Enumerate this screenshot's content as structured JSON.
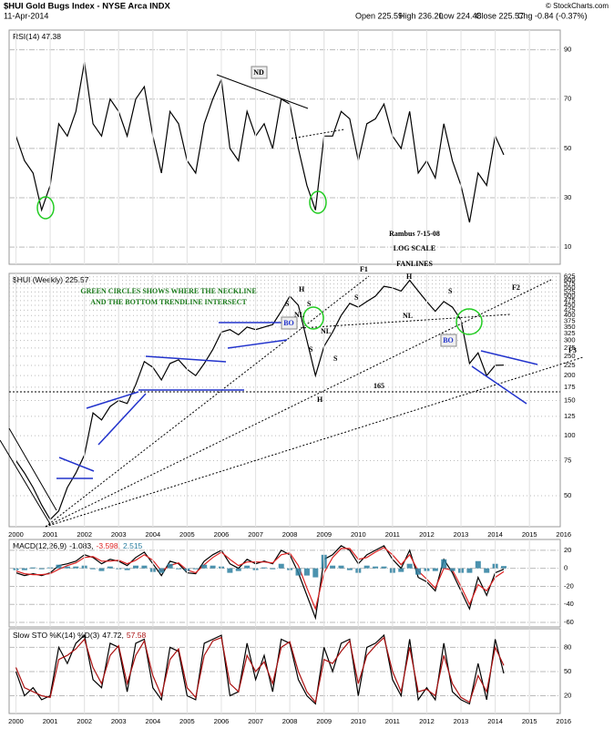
{
  "header": {
    "title": "$HUI Gold Bugs Index - NYSE Arca INDX",
    "date": "11-Apr-2014",
    "stats": [
      "Open 225.59",
      "High 236.20",
      "Low 224.48",
      "Close 225.57",
      "Chg -0.84 (-0.37%)"
    ],
    "copyright": "© StockCharts.com"
  },
  "annotations": [
    "ND",
    "Rambus  7-15-08",
    "LOG SCALE",
    "FANLINES",
    "F1",
    "F2",
    "F3",
    "GREEN CIRCLES SHOWS WHERE THE NECKLINE",
    "AND THE BOTTOM TRENDLINE INTERSECT",
    "H",
    "S",
    "S",
    "NL",
    "BO",
    "S",
    "NL",
    "S",
    "H",
    "S",
    "H",
    "NL",
    "S",
    "BO",
    "165"
  ],
  "chart_data": [
    {
      "type": "line",
      "label": [
        "RSI(14) 47.38"
      ],
      "xlim": [
        1999.8,
        2015.9
      ],
      "ylim": [
        3,
        98
      ],
      "yticks": [
        10,
        30,
        50,
        70,
        90
      ],
      "grid": true,
      "series": [
        {
          "color": "#000000",
          "x": [
            2000,
            2000.25,
            2000.5,
            2000.75,
            2001,
            2001.25,
            2001.5,
            2001.75,
            2002,
            2002.25,
            2002.5,
            2002.75,
            2003,
            2003.25,
            2003.5,
            2003.75,
            2004,
            2004.25,
            2004.5,
            2004.75,
            2005,
            2005.25,
            2005.5,
            2005.75,
            2006,
            2006.25,
            2006.5,
            2006.75,
            2007,
            2007.25,
            2007.5,
            2007.75,
            2008,
            2008.25,
            2008.5,
            2008.75,
            2009,
            2009.25,
            2009.5,
            2009.75,
            2010,
            2010.25,
            2010.5,
            2010.75,
            2011,
            2011.25,
            2011.5,
            2011.75,
            2012,
            2012.25,
            2012.5,
            2012.75,
            2013,
            2013.25,
            2013.5,
            2013.75,
            2014,
            2014.25
          ],
          "values": [
            55,
            45,
            40,
            25,
            35,
            60,
            55,
            65,
            85,
            60,
            55,
            70,
            65,
            55,
            70,
            75,
            55,
            40,
            65,
            60,
            45,
            40,
            60,
            70,
            78,
            50,
            45,
            65,
            55,
            60,
            50,
            70,
            68,
            50,
            35,
            25,
            55,
            55,
            65,
            62,
            45,
            60,
            62,
            68,
            55,
            50,
            65,
            40,
            45,
            38,
            60,
            45,
            35,
            20,
            40,
            35,
            55,
            47.38
          ]
        }
      ]
    },
    {
      "type": "line",
      "label": [
        "$HUI (Weekly) 225.57"
      ],
      "log_scale": true,
      "xlim": [
        1999.8,
        2015.9
      ],
      "ylim": [
        35,
        650
      ],
      "yticks": [
        50,
        75,
        100,
        125,
        150,
        175,
        200,
        225,
        250,
        275,
        300,
        325,
        350,
        375,
        400,
        425,
        450,
        475,
        500,
        525,
        550,
        575,
        600,
        625
      ],
      "xticks": [
        2000,
        2001,
        2002,
        2003,
        2004,
        2005,
        2006,
        2007,
        2008,
        2009,
        2010,
        2011,
        2012,
        2013,
        2014,
        2015,
        2016
      ],
      "grid": true,
      "series": [
        {
          "color": "#000000",
          "x": [
            2000,
            2000.25,
            2000.5,
            2000.75,
            2001,
            2001.25,
            2001.5,
            2001.75,
            2002,
            2002.25,
            2002.5,
            2002.75,
            2003,
            2003.25,
            2003.5,
            2003.75,
            2004,
            2004.25,
            2004.5,
            2004.75,
            2005,
            2005.25,
            2005.5,
            2005.75,
            2006,
            2006.25,
            2006.5,
            2006.75,
            2007,
            2007.25,
            2007.5,
            2007.75,
            2008,
            2008.25,
            2008.5,
            2008.75,
            2009,
            2009.25,
            2009.5,
            2009.75,
            2010,
            2010.25,
            2010.5,
            2010.75,
            2011,
            2011.25,
            2011.5,
            2011.75,
            2012,
            2012.25,
            2012.5,
            2012.75,
            2013,
            2013.25,
            2013.5,
            2013.75,
            2014,
            2014.25
          ],
          "values": [
            75,
            65,
            55,
            45,
            38,
            42,
            55,
            65,
            80,
            130,
            120,
            140,
            150,
            145,
            180,
            235,
            220,
            190,
            230,
            240,
            215,
            200,
            230,
            270,
            330,
            340,
            320,
            350,
            340,
            350,
            360,
            420,
            500,
            450,
            300,
            200,
            280,
            330,
            400,
            460,
            440,
            470,
            500,
            560,
            550,
            530,
            600,
            530,
            470,
            420,
            470,
            440,
            380,
            230,
            260,
            200,
            225,
            225.57
          ]
        }
      ]
    },
    {
      "type": "line",
      "label": [
        "MACD(12,26,9)",
        "-1.083,",
        "-3.598,",
        "2.515"
      ],
      "xlim": [
        1999.8,
        2015.9
      ],
      "ylim": [
        -65,
        32
      ],
      "yticks": [
        -60,
        -40,
        -20,
        0,
        20
      ],
      "grid": true,
      "series": [
        {
          "color": "#000000",
          "x": [
            2000,
            2000.25,
            2000.5,
            2000.75,
            2001,
            2001.25,
            2001.5,
            2001.75,
            2002,
            2002.25,
            2002.5,
            2002.75,
            2003,
            2003.25,
            2003.5,
            2003.75,
            2004,
            2004.25,
            2004.5,
            2004.75,
            2005,
            2005.25,
            2005.5,
            2005.75,
            2006,
            2006.25,
            2006.5,
            2006.75,
            2007,
            2007.25,
            2007.5,
            2007.75,
            2008,
            2008.25,
            2008.5,
            2008.75,
            2009,
            2009.25,
            2009.5,
            2009.75,
            2010,
            2010.25,
            2010.5,
            2010.75,
            2011,
            2011.25,
            2011.5,
            2011.75,
            2012,
            2012.25,
            2012.5,
            2012.75,
            2013,
            2013.25,
            2013.5,
            2013.75,
            2014,
            2014.25
          ],
          "values": [
            -5,
            -8,
            -6,
            -8,
            -5,
            3,
            5,
            8,
            15,
            12,
            5,
            10,
            8,
            3,
            12,
            18,
            5,
            -8,
            8,
            5,
            -5,
            -6,
            8,
            15,
            20,
            5,
            0,
            10,
            5,
            8,
            5,
            20,
            15,
            -5,
            -30,
            -55,
            10,
            15,
            25,
            20,
            5,
            15,
            20,
            25,
            10,
            0,
            20,
            -10,
            -15,
            -25,
            10,
            -5,
            -25,
            -45,
            -10,
            -30,
            -5,
            -1.083
          ]
        },
        {
          "color": "#dd2222",
          "x": [
            2000,
            2000.25,
            2000.5,
            2000.75,
            2001,
            2001.25,
            2001.5,
            2001.75,
            2002,
            2002.25,
            2002.5,
            2002.75,
            2003,
            2003.25,
            2003.5,
            2003.75,
            2004,
            2004.25,
            2004.5,
            2004.75,
            2005,
            2005.25,
            2005.5,
            2005.75,
            2006,
            2006.25,
            2006.5,
            2006.75,
            2007,
            2007.25,
            2007.5,
            2007.75,
            2008,
            2008.25,
            2008.5,
            2008.75,
            2009,
            2009.25,
            2009.5,
            2009.75,
            2010,
            2010.25,
            2010.5,
            2010.75,
            2011,
            2011.25,
            2011.5,
            2011.75,
            2012,
            2012.25,
            2012.5,
            2012.75,
            2013,
            2013.25,
            2013.5,
            2013.75,
            2014,
            2014.25
          ],
          "values": [
            -3,
            -6,
            -7,
            -7,
            -6,
            -1,
            3,
            6,
            12,
            13,
            8,
            8,
            9,
            5,
            9,
            15,
            9,
            -3,
            3,
            6,
            -2,
            -5,
            4,
            12,
            18,
            10,
            3,
            7,
            7,
            7,
            6,
            15,
            17,
            3,
            -22,
            -45,
            -5,
            12,
            22,
            22,
            10,
            12,
            18,
            23,
            15,
            4,
            15,
            -3,
            -12,
            -22,
            0,
            -2,
            -20,
            -40,
            -18,
            -25,
            -10,
            -3.598
          ]
        },
        {
          "color": "#2b7fa0",
          "type": "bar",
          "x": [
            2000,
            2000.25,
            2000.5,
            2000.75,
            2001,
            2001.25,
            2001.5,
            2001.75,
            2002,
            2002.25,
            2002.5,
            2002.75,
            2003,
            2003.25,
            2003.5,
            2003.75,
            2004,
            2004.25,
            2004.5,
            2004.75,
            2005,
            2005.25,
            2005.5,
            2005.75,
            2006,
            2006.25,
            2006.5,
            2006.75,
            2007,
            2007.25,
            2007.5,
            2007.75,
            2008,
            2008.25,
            2008.5,
            2008.75,
            2009,
            2009.25,
            2009.5,
            2009.75,
            2010,
            2010.25,
            2010.5,
            2010.75,
            2011,
            2011.25,
            2011.5,
            2011.75,
            2012,
            2012.25,
            2012.5,
            2012.75,
            2013,
            2013.25,
            2013.5,
            2013.75,
            2014,
            2014.25
          ],
          "values": [
            -2,
            -2,
            1,
            -1,
            1,
            4,
            2,
            2,
            3,
            -1,
            -3,
            2,
            -1,
            -2,
            3,
            3,
            -4,
            -5,
            5,
            -1,
            -3,
            -1,
            4,
            3,
            2,
            -5,
            -3,
            3,
            -2,
            1,
            -1,
            5,
            -2,
            -8,
            -8,
            -10,
            15,
            3,
            3,
            -2,
            -5,
            3,
            2,
            2,
            -5,
            -4,
            5,
            -7,
            -3,
            -3,
            10,
            -3,
            -5,
            -5,
            8,
            -5,
            5,
            2.515
          ]
        }
      ]
    },
    {
      "type": "line",
      "label": [
        "Slow STO %K(14) %D(3)",
        "47.72,",
        "57.58"
      ],
      "xlim": [
        1999.8,
        2015.9
      ],
      "ylim": [
        -2,
        103
      ],
      "yticks": [
        20,
        50,
        80
      ],
      "xticks": [
        2000,
        2001,
        2002,
        2003,
        2004,
        2005,
        2006,
        2007,
        2008,
        2009,
        2010,
        2011,
        2012,
        2013,
        2014,
        2015,
        2016
      ],
      "grid": true,
      "series": [
        {
          "color": "#000000",
          "x": [
            2000,
            2000.25,
            2000.5,
            2000.75,
            2001,
            2001.25,
            2001.5,
            2001.75,
            2002,
            2002.25,
            2002.5,
            2002.75,
            2003,
            2003.25,
            2003.5,
            2003.75,
            2004,
            2004.25,
            2004.5,
            2004.75,
            2005,
            2005.25,
            2005.5,
            2005.75,
            2006,
            2006.25,
            2006.5,
            2006.75,
            2007,
            2007.25,
            2007.5,
            2007.75,
            2008,
            2008.25,
            2008.5,
            2008.75,
            2009,
            2009.25,
            2009.5,
            2009.75,
            2010,
            2010.25,
            2010.5,
            2010.75,
            2011,
            2011.25,
            2011.5,
            2011.75,
            2012,
            2012.25,
            2012.5,
            2012.75,
            2013,
            2013.25,
            2013.5,
            2013.75,
            2014,
            2014.25
          ],
          "values": [
            50,
            20,
            30,
            15,
            20,
            80,
            60,
            85,
            95,
            40,
            30,
            85,
            80,
            25,
            85,
            90,
            30,
            15,
            80,
            75,
            20,
            15,
            85,
            90,
            95,
            20,
            25,
            85,
            40,
            70,
            25,
            90,
            85,
            40,
            20,
            10,
            80,
            50,
            85,
            90,
            20,
            80,
            85,
            95,
            40,
            20,
            90,
            15,
            30,
            15,
            85,
            25,
            15,
            10,
            60,
            15,
            90,
            47.72
          ]
        },
        {
          "color": "#aa1111",
          "x": [
            2000,
            2000.25,
            2000.5,
            2000.75,
            2001,
            2001.25,
            2001.5,
            2001.75,
            2002,
            2002.25,
            2002.5,
            2002.75,
            2003,
            2003.25,
            2003.5,
            2003.75,
            2004,
            2004.25,
            2004.5,
            2004.75,
            2005,
            2005.25,
            2005.5,
            2005.75,
            2006,
            2006.25,
            2006.5,
            2006.75,
            2007,
            2007.25,
            2007.5,
            2007.75,
            2008,
            2008.25,
            2008.5,
            2008.75,
            2009,
            2009.25,
            2009.5,
            2009.75,
            2010,
            2010.25,
            2010.5,
            2010.75,
            2011,
            2011.25,
            2011.5,
            2011.75,
            2012,
            2012.25,
            2012.5,
            2012.75,
            2013,
            2013.25,
            2013.5,
            2013.75,
            2014,
            2014.25
          ],
          "values": [
            55,
            30,
            25,
            20,
            18,
            65,
            70,
            78,
            90,
            55,
            35,
            70,
            82,
            35,
            70,
            88,
            45,
            20,
            65,
            78,
            30,
            18,
            70,
            88,
            92,
            35,
            25,
            70,
            50,
            62,
            35,
            80,
            87,
            50,
            25,
            12,
            65,
            60,
            75,
            88,
            35,
            70,
            82,
            92,
            50,
            25,
            80,
            25,
            28,
            20,
            70,
            35,
            18,
            12,
            45,
            25,
            80,
            57.58
          ]
        }
      ]
    }
  ]
}
